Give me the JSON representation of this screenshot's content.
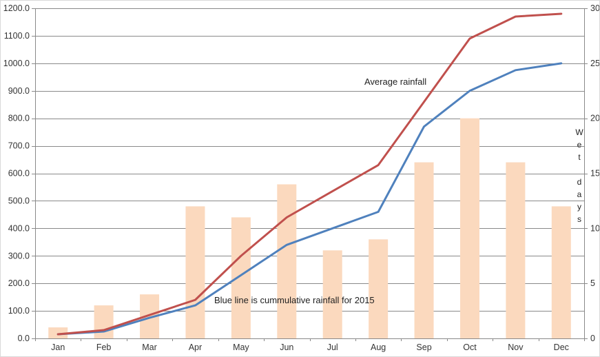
{
  "colors": {
    "grid": "#898989",
    "axis": "#898989",
    "tick_text": "#333333",
    "annotation_text": "#1f1f1f",
    "background": "#ffffff",
    "bar_fill": "#fbd9be",
    "red_line": "#c0504d",
    "blue_line": "#4f81bd"
  },
  "chart_data": {
    "type": "combo",
    "title": "",
    "categories": [
      "Jan",
      "Feb",
      "Mar",
      "Apr",
      "May",
      "Jun",
      "Jul",
      "Aug",
      "Sep",
      "Oct",
      "Nov",
      "Dec"
    ],
    "series": [
      {
        "name": "Wet days",
        "type": "bar",
        "axis": "right",
        "color": "#fbd9be",
        "values": [
          1,
          3,
          4,
          12,
          11,
          14,
          8,
          9,
          16,
          20,
          16,
          12
        ]
      },
      {
        "name": "Cumulative rainfall 2015",
        "type": "line",
        "axis": "left",
        "color": "#4f81bd",
        "values": [
          15,
          25,
          75,
          120,
          230,
          340,
          400,
          460,
          770,
          900,
          975,
          1000
        ]
      },
      {
        "name": "Average rainfall",
        "type": "line",
        "axis": "left",
        "color": "#c0504d",
        "values": [
          15,
          30,
          85,
          140,
          300,
          440,
          535,
          630,
          860,
          1090,
          1170,
          1180
        ]
      }
    ],
    "left_axis": {
      "min": 0,
      "max": 1200,
      "step": 100,
      "decimals": 1,
      "tick_labels": [
        "0.0",
        "100.0",
        "200.0",
        "300.0",
        "400.0",
        "500.0",
        "600.0",
        "700.0",
        "800.0",
        "900.0",
        "1000.0",
        "1100.0",
        "1200.0"
      ]
    },
    "right_axis": {
      "min": 0,
      "max": 30,
      "step": 5,
      "decimals": 0,
      "title": "Wet days",
      "tick_labels": [
        "0",
        "5",
        "10",
        "15",
        "20",
        "25",
        "30"
      ]
    },
    "grid": true,
    "legend": "none",
    "annotations": [
      {
        "id": "average-rainfall-label",
        "text": "Average rainfall"
      },
      {
        "id": "blue-line-note",
        "text": "Blue line is cummulative rainfall for 2015"
      }
    ]
  }
}
